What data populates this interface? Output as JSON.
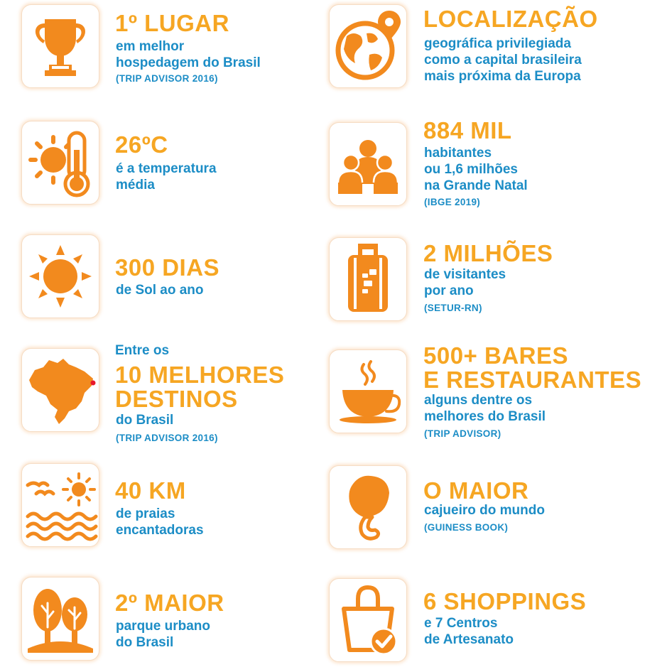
{
  "colors": {
    "accent_orange": "#F28A1E",
    "heading_yellow": "#F6A623",
    "text_blue": "#1C8DC6",
    "marker_red": "#E8192C"
  },
  "facts": [
    {
      "icon": "trophy-icon",
      "pre": "",
      "heading": "1º LUGAR",
      "body": "em melhor\nhospedagem do Brasil",
      "source": "(TRIP ADVISOR 2016)"
    },
    {
      "icon": "globe-location-icon",
      "pre": "",
      "heading": "LOCALIZAÇÃO",
      "body": "geográfica privilegiada\ncomo a capital brasileira\nmais próxima da Europa",
      "source": ""
    },
    {
      "icon": "sun-thermometer-icon",
      "pre": "",
      "heading": "26ºC",
      "body": "é a temperatura\nmédia",
      "source": ""
    },
    {
      "icon": "people-icon",
      "pre": "",
      "heading": "884 MIL",
      "body": "habitantes\nou 1,6 milhões\nna Grande Natal",
      "source": "(IBGE 2019)"
    },
    {
      "icon": "sun-icon",
      "pre": "",
      "heading": "300 DIAS",
      "body": "de Sol ao ano",
      "source": ""
    },
    {
      "icon": "suitcase-icon",
      "pre": "",
      "heading": "2 MILHÕES",
      "body": "de visitantes\npor ano",
      "source": "(SETUR-RN)"
    },
    {
      "icon": "brazil-map-icon",
      "pre": "Entre os",
      "heading": "10 MELHORES\nDESTINOS",
      "body": "do Brasil",
      "source": "(TRIP ADVISOR 2016)"
    },
    {
      "icon": "coffee-cup-icon",
      "pre": "",
      "heading": "500+ BARES\nE RESTAURANTES",
      "body": "alguns dentre os\nmelhores do Brasil",
      "source": "(TRIP ADVISOR)"
    },
    {
      "icon": "beach-waves-icon",
      "pre": "",
      "heading": "40 KM",
      "body": "de praias\nencantadoras",
      "source": ""
    },
    {
      "icon": "cashew-icon",
      "pre": "",
      "heading": "O MAIOR",
      "body": "cajueiro do mundo",
      "source": "(GUINESS BOOK)"
    },
    {
      "icon": "trees-icon",
      "pre": "",
      "heading": "2º MAIOR",
      "body": "parque urbano\ndo Brasil",
      "source": ""
    },
    {
      "icon": "shopping-bag-icon",
      "pre": "",
      "heading": "6 SHOPPINGS",
      "body": "e 7 Centros\nde Artesanato",
      "source": ""
    }
  ]
}
